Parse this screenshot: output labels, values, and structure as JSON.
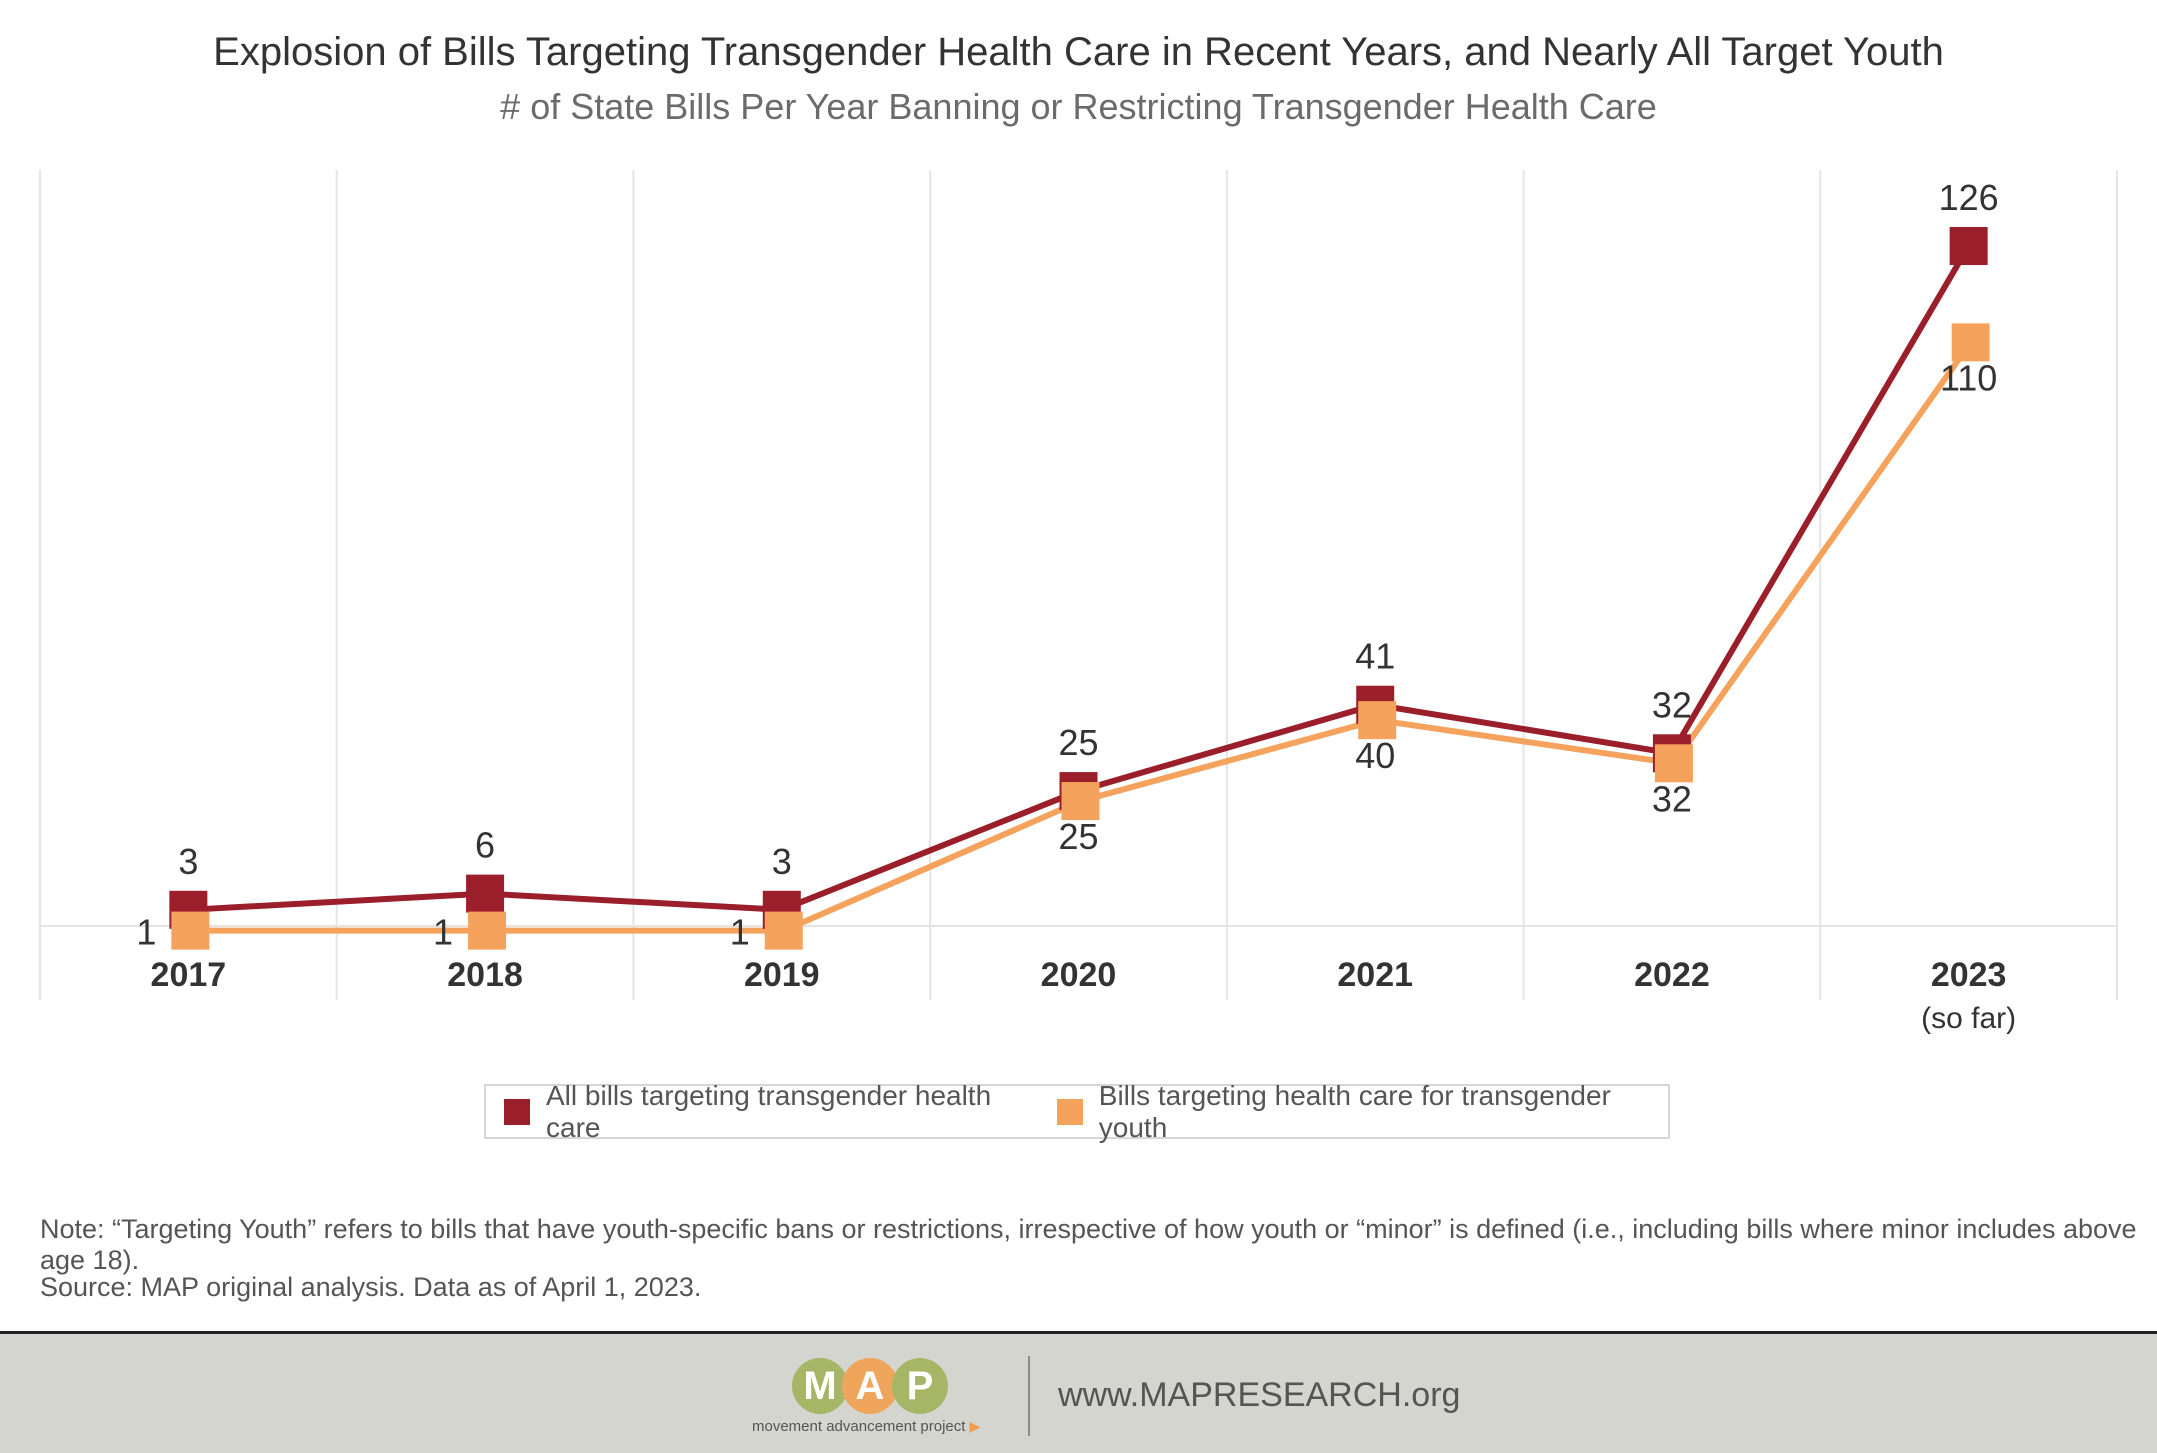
{
  "chart_title": "Explosion of Bills Targeting Transgender Health Care in Recent Years, and Nearly All Target Youth",
  "chart_subtitle": "# of State Bills Per Year Banning or Restricting Transgender Health Care",
  "chart_data": {
    "type": "line",
    "title": "Explosion of Bills Targeting Transgender Health Care in Recent Years, and Nearly All Target Youth",
    "subtitle": "# of State Bills Per Year Banning or Restricting Transgender Health Care",
    "categories": [
      "2017",
      "2018",
      "2019",
      "2020",
      "2021",
      "2022",
      "2023"
    ],
    "category_sublabels": [
      "",
      "",
      "",
      "",
      "",
      "",
      "(so far)"
    ],
    "series": [
      {
        "name": "All bills targeting transgender health care",
        "values": [
          3,
          6,
          3,
          25,
          41,
          32,
          126
        ],
        "color": "#9b1f2b",
        "labels_position": "above"
      },
      {
        "name": "Bills targeting health care for transgender youth",
        "values": [
          1,
          1,
          1,
          25,
          40,
          32,
          110
        ],
        "color": "#f5a25d",
        "labels_position": "below"
      }
    ],
    "ylim": [
      0,
      135
    ],
    "grid": "vertical",
    "legend_position": "bottom",
    "marker": "square",
    "xlabel": "",
    "ylabel": ""
  },
  "legend": {
    "items": [
      {
        "label": "All bills targeting transgender health care",
        "color": "#9b1f2b"
      },
      {
        "label": "Bills targeting health care for transgender youth",
        "color": "#f5a25d"
      }
    ]
  },
  "notes": {
    "note": "Note: “Targeting Youth” refers to bills that have youth-specific bans or restrictions, irrespective of how youth or “minor” is defined (i.e., including bills where minor includes above age 18).",
    "source": "Source: MAP original analysis. Data as of April 1, 2023."
  },
  "footer": {
    "logo_letters": [
      "M",
      "A",
      "P"
    ],
    "logo_colors": [
      "#a7b567",
      "#f0a55c",
      "#a7b567"
    ],
    "logo_tagline": "movement advancement project",
    "website": "www.MAPRESEARCH.org"
  }
}
